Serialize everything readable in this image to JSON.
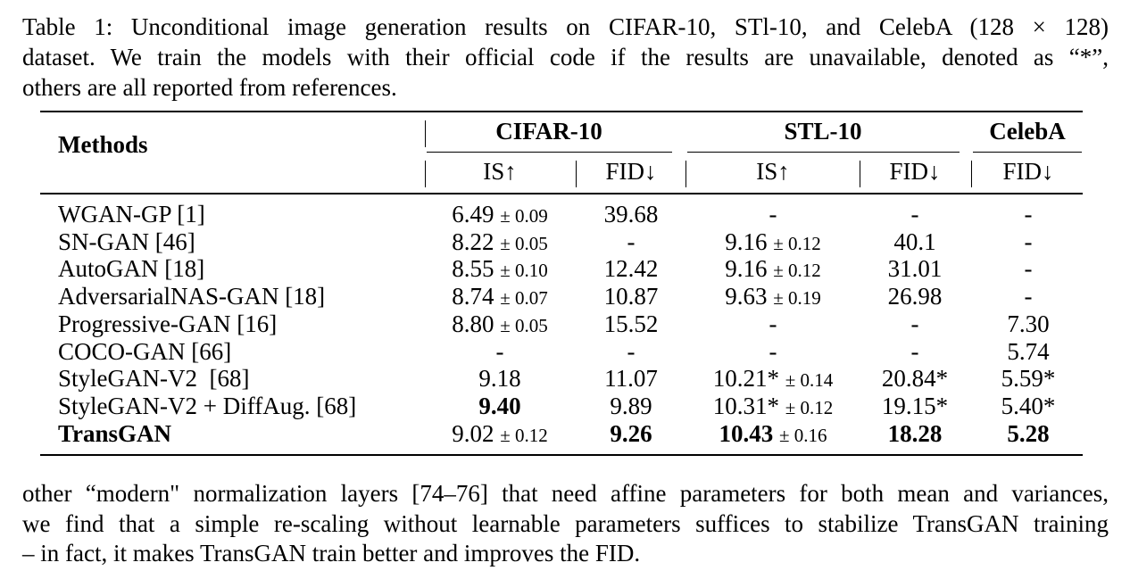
{
  "caption": [
    "Table 1: Unconditional image generation results on CIFAR-10, STl-10, and CelebA (128 × 128)",
    "dataset. We train the models with their official code if the results are unavailable, denoted as “*”,",
    "others are all reported from references."
  ],
  "table": {
    "header": {
      "methods": "Methods",
      "groups": [
        "CIFAR-10",
        "STL-10",
        "CelebA"
      ],
      "metrics": [
        "IS↑",
        "FID↓",
        "IS↑",
        "FID↓",
        "FID↓"
      ]
    },
    "rows": [
      {
        "method": "WGAN-GP [1]",
        "cells": [
          {
            "text": "6.49",
            "std": "± 0.09"
          },
          {
            "text": "39.68"
          },
          {
            "text": "-"
          },
          {
            "text": "-"
          },
          {
            "text": "-"
          }
        ]
      },
      {
        "method": "SN-GAN [46]",
        "cells": [
          {
            "text": "8.22",
            "std": "± 0.05"
          },
          {
            "text": "-"
          },
          {
            "text": "9.16",
            "std": "± 0.12"
          },
          {
            "text": "40.1"
          },
          {
            "text": "-"
          }
        ]
      },
      {
        "method": "AutoGAN [18]",
        "cells": [
          {
            "text": "8.55",
            "std": "± 0.10"
          },
          {
            "text": "12.42"
          },
          {
            "text": "9.16",
            "std": "± 0.12"
          },
          {
            "text": "31.01"
          },
          {
            "text": "-"
          }
        ]
      },
      {
        "method": "AdversarialNAS-GAN [18]",
        "cells": [
          {
            "text": "8.74",
            "std": "± 0.07"
          },
          {
            "text": "10.87"
          },
          {
            "text": "9.63",
            "std": "± 0.19"
          },
          {
            "text": "26.98"
          },
          {
            "text": "-"
          }
        ]
      },
      {
        "method": "Progressive-GAN [16]",
        "cells": [
          {
            "text": "8.80",
            "std": "± 0.05"
          },
          {
            "text": "15.52"
          },
          {
            "text": "-"
          },
          {
            "text": "-"
          },
          {
            "text": "7.30"
          }
        ]
      },
      {
        "method": "COCO-GAN [66]",
        "cells": [
          {
            "text": "-"
          },
          {
            "text": "-"
          },
          {
            "text": "-"
          },
          {
            "text": "-"
          },
          {
            "text": "5.74"
          }
        ]
      },
      {
        "method": "StyleGAN-V2  [68]",
        "cells": [
          {
            "text": "9.18"
          },
          {
            "text": "11.07"
          },
          {
            "text": "10.21*",
            "std": "± 0.14"
          },
          {
            "text": "20.84*"
          },
          {
            "text": "5.59*"
          }
        ]
      },
      {
        "method": "StyleGAN-V2 + DiffAug. [68]",
        "cells": [
          {
            "text": "9.40",
            "bold": true
          },
          {
            "text": "9.89"
          },
          {
            "text": "10.31*",
            "std": "± 0.12"
          },
          {
            "text": "19.15*"
          },
          {
            "text": "5.40*"
          }
        ]
      },
      {
        "method": "TransGAN",
        "bold": true,
        "cells": [
          {
            "text": "9.02",
            "std": "± 0.12"
          },
          {
            "text": "9.26",
            "bold": true
          },
          {
            "text": "10.43",
            "std": "± 0.16",
            "bold": true
          },
          {
            "text": "18.28",
            "bold": true
          },
          {
            "text": "5.28",
            "bold": true
          }
        ]
      }
    ]
  },
  "body": [
    "other “modern\" normalization layers [74–76] that need affine parameters for both mean and variances,",
    "we find that a simple re-scaling without learnable parameters suffices to stabilize TransGAN training",
    "– in fact, it makes TransGAN train better and improves the FID."
  ]
}
